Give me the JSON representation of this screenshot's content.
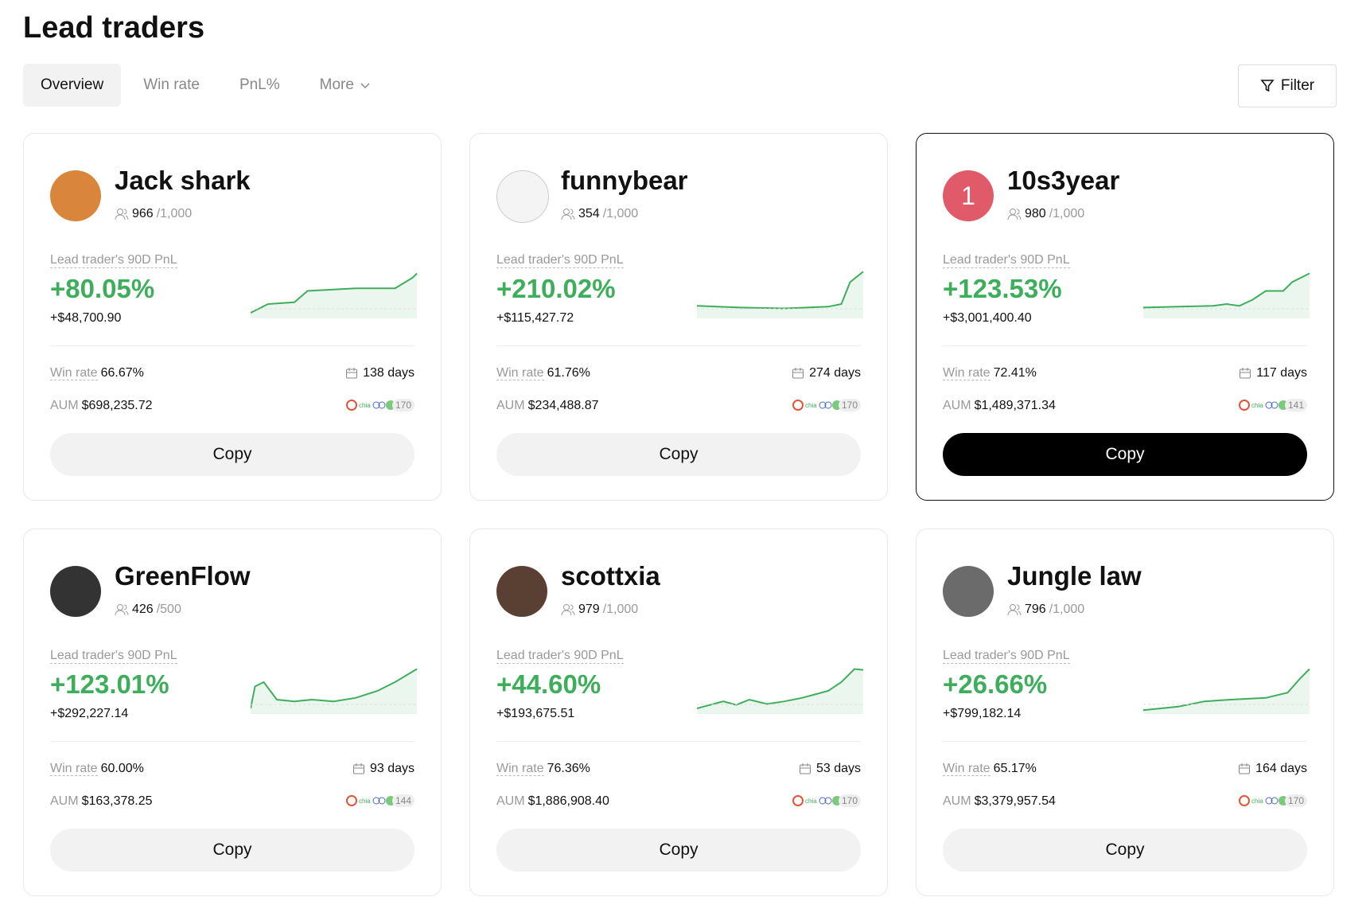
{
  "header": {
    "title": "Lead traders"
  },
  "tabs": [
    "Overview",
    "Win rate",
    "PnL%",
    "More"
  ],
  "filter": "Filter",
  "cards": [
    {
      "name": "Jack shark",
      "followers": "966",
      "max": "/1,000",
      "pnl_label": "Lead trader's 90D PnL",
      "pnl_pct": "+80.05%",
      "pnl_usd": "+$48,700.90",
      "win_label": "Win rate",
      "win_rate": "66.67%",
      "days": "138 days",
      "aum_label": "AUM",
      "aum": "$698,235.72",
      "coins": "170",
      "button": "Copy"
    },
    {
      "name": "funnybear",
      "followers": "354",
      "max": "/1,000",
      "pnl_label": "Lead trader's 90D PnL",
      "pnl_pct": "+210.02%",
      "pnl_usd": "+$115,427.72",
      "win_label": "Win rate",
      "win_rate": "61.76%",
      "days": "274 days",
      "aum_label": "AUM",
      "aum": "$234,488.87",
      "coins": "170",
      "button": "Copy"
    },
    {
      "name": "10s3year",
      "avatar_text": "1",
      "followers": "980",
      "max": "/1,000",
      "pnl_label": "Lead trader's 90D PnL",
      "pnl_pct": "+123.53%",
      "pnl_usd": "+$3,001,400.40",
      "win_label": "Win rate",
      "win_rate": "72.41%",
      "days": "117 days",
      "aum_label": "AUM",
      "aum": "$1,489,371.34",
      "coins": "141",
      "button": "Copy"
    },
    {
      "name": "GreenFlow",
      "followers": "426",
      "max": "/500",
      "pnl_label": "Lead trader's 90D PnL",
      "pnl_pct": "+123.01%",
      "pnl_usd": "+$292,227.14",
      "win_label": "Win rate",
      "win_rate": "60.00%",
      "days": "93 days",
      "aum_label": "AUM",
      "aum": "$163,378.25",
      "coins": "144",
      "button": "Copy"
    },
    {
      "name": "scottxia",
      "followers": "979",
      "max": "/1,000",
      "pnl_label": "Lead trader's 90D PnL",
      "pnl_pct": "+44.60%",
      "pnl_usd": "+$193,675.51",
      "win_label": "Win rate",
      "win_rate": "76.36%",
      "days": "53 days",
      "aum_label": "AUM",
      "aum": "$1,886,908.40",
      "coins": "170",
      "button": "Copy"
    },
    {
      "name": "Jungle law",
      "followers": "796",
      "max": "/1,000",
      "pnl_label": "Lead trader's 90D PnL",
      "pnl_pct": "+26.66%",
      "pnl_usd": "+$799,182.14",
      "win_label": "Win rate",
      "win_rate": "65.17%",
      "days": "164 days",
      "aum_label": "AUM",
      "aum": "$3,379,957.54",
      "coins": "170",
      "button": "Copy"
    }
  ]
}
